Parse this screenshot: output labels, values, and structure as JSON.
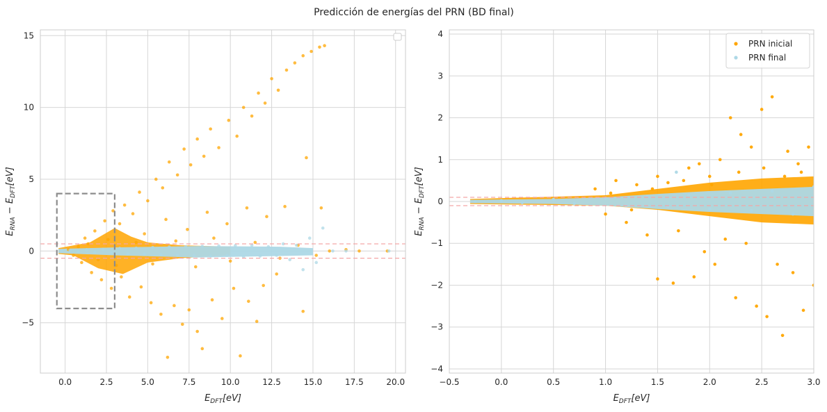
{
  "figure_title": "Predicción de energías del PRN (BD final)",
  "colors": {
    "inicial": "#FFA500",
    "final": "#ADD8E6",
    "band": "#F4A6A6",
    "box": "#8C8C8C",
    "grid": "#D6D6D6"
  },
  "chart_data": [
    {
      "type": "scatter",
      "title": "",
      "xlabel": "E_DFT[eV]",
      "ylabel": "E_RNA − E_DFT[eV]",
      "xlim": [
        -1.5,
        20.6
      ],
      "ylim": [
        -8.5,
        15.4
      ],
      "xticks": [
        0,
        2.5,
        5,
        7.5,
        10,
        12.5,
        15,
        17.5,
        20
      ],
      "xtick_labels": [
        "0.0",
        "2.5",
        "5.0",
        "7.5",
        "10.0",
        "12.5",
        "15.0",
        "17.5",
        "20.0"
      ],
      "yticks": [
        -5,
        0,
        5,
        10,
        15
      ],
      "ytick_labels": [
        "−5",
        "0",
        "5",
        "10",
        "15"
      ],
      "grid": true,
      "legend": "top-right (empty)",
      "hlines": [
        0.5,
        -0.5
      ],
      "zoom_box": {
        "x": [
          -0.5,
          3.0
        ],
        "y": [
          -4.0,
          4.0
        ]
      },
      "series": [
        {
          "key": "inicial",
          "points": [
            [
              0.2,
              0.1
            ],
            [
              0.8,
              0.3
            ],
            [
              1.2,
              0.9
            ],
            [
              1.8,
              1.4
            ],
            [
              2.4,
              2.1
            ],
            [
              2.9,
              2.8
            ],
            [
              3.3,
              1.9
            ],
            [
              3.6,
              3.2
            ],
            [
              4.1,
              2.6
            ],
            [
              4.5,
              4.1
            ],
            [
              5.0,
              3.5
            ],
            [
              5.5,
              5.0
            ],
            [
              5.9,
              4.4
            ],
            [
              6.3,
              6.2
            ],
            [
              6.8,
              5.3
            ],
            [
              7.2,
              7.1
            ],
            [
              7.6,
              6.0
            ],
            [
              8.0,
              7.8
            ],
            [
              8.4,
              6.6
            ],
            [
              8.8,
              8.5
            ],
            [
              9.3,
              7.2
            ],
            [
              9.9,
              9.1
            ],
            [
              10.4,
              8.0
            ],
            [
              10.8,
              10.0
            ],
            [
              11.3,
              9.4
            ],
            [
              11.7,
              11.0
            ],
            [
              12.1,
              10.3
            ],
            [
              12.5,
              12.0
            ],
            [
              12.9,
              11.2
            ],
            [
              13.4,
              12.6
            ],
            [
              13.9,
              13.1
            ],
            [
              14.4,
              13.6
            ],
            [
              14.9,
              13.9
            ],
            [
              15.4,
              14.2
            ],
            [
              15.7,
              14.3
            ],
            [
              4.8,
              1.2
            ],
            [
              6.1,
              2.2
            ],
            [
              7.4,
              1.5
            ],
            [
              8.6,
              2.7
            ],
            [
              9.8,
              1.9
            ],
            [
              11.0,
              3.0
            ],
            [
              12.2,
              2.4
            ],
            [
              13.3,
              3.1
            ],
            [
              14.6,
              6.5
            ],
            [
              15.5,
              3.0
            ],
            [
              1.0,
              -0.8
            ],
            [
              1.6,
              -1.5
            ],
            [
              2.2,
              -2.0
            ],
            [
              2.8,
              -2.6
            ],
            [
              3.4,
              -1.8
            ],
            [
              3.9,
              -3.2
            ],
            [
              4.6,
              -2.5
            ],
            [
              5.2,
              -3.6
            ],
            [
              5.8,
              -4.4
            ],
            [
              6.2,
              -7.4
            ],
            [
              6.6,
              -3.8
            ],
            [
              7.1,
              -5.1
            ],
            [
              7.5,
              -4.1
            ],
            [
              8.0,
              -5.6
            ],
            [
              8.3,
              -6.8
            ],
            [
              8.9,
              -3.4
            ],
            [
              9.5,
              -4.7
            ],
            [
              10.2,
              -2.6
            ],
            [
              10.6,
              -7.3
            ],
            [
              11.1,
              -3.5
            ],
            [
              11.6,
              -4.9
            ],
            [
              12.0,
              -2.4
            ],
            [
              12.8,
              -1.6
            ],
            [
              14.4,
              -4.2
            ],
            [
              0.5,
              -0.3
            ],
            [
              1.4,
              0.5
            ],
            [
              2.0,
              -0.6
            ],
            [
              2.6,
              0.8
            ],
            [
              3.1,
              -1.0
            ],
            [
              4.3,
              0.6
            ],
            [
              5.3,
              -0.9
            ],
            [
              6.7,
              0.7
            ],
            [
              7.9,
              -1.1
            ],
            [
              9.0,
              0.9
            ],
            [
              10.0,
              -0.7
            ],
            [
              11.5,
              0.6
            ],
            [
              13.0,
              -0.5
            ],
            [
              14.1,
              0.4
            ],
            [
              15.2,
              -0.3
            ],
            [
              16.0,
              0.0
            ],
            [
              17.0,
              0.1
            ],
            [
              17.8,
              0.0
            ],
            [
              19.5,
              0.0
            ]
          ]
        },
        {
          "key": "final",
          "points": [
            [
              -0.2,
              0.0
            ],
            [
              0.3,
              0.05
            ],
            [
              0.8,
              -0.05
            ],
            [
              1.3,
              0.1
            ],
            [
              1.8,
              -0.1
            ],
            [
              2.3,
              0.12
            ],
            [
              2.8,
              -0.15
            ],
            [
              3.3,
              0.18
            ],
            [
              3.8,
              -0.2
            ],
            [
              4.3,
              0.2
            ],
            [
              4.8,
              -0.22
            ],
            [
              5.3,
              0.25
            ],
            [
              5.8,
              -0.25
            ],
            [
              6.3,
              0.28
            ],
            [
              6.8,
              -0.3
            ],
            [
              7.3,
              0.3
            ],
            [
              7.8,
              -0.32
            ],
            [
              8.3,
              0.33
            ],
            [
              8.8,
              -0.35
            ],
            [
              9.3,
              0.35
            ],
            [
              9.8,
              -0.3
            ],
            [
              10.3,
              0.38
            ],
            [
              10.8,
              -0.4
            ],
            [
              11.3,
              0.4
            ],
            [
              11.8,
              -0.35
            ],
            [
              12.3,
              0.3
            ],
            [
              12.8,
              -0.3
            ],
            [
              13.2,
              0.5
            ],
            [
              13.6,
              -0.6
            ],
            [
              14.0,
              0.4
            ],
            [
              14.4,
              -1.3
            ],
            [
              14.8,
              0.9
            ],
            [
              15.2,
              -0.8
            ],
            [
              15.6,
              1.6
            ],
            [
              16.2,
              0.0
            ],
            [
              17.0,
              0.0
            ],
            [
              19.6,
              0.0
            ]
          ]
        }
      ]
    },
    {
      "type": "scatter",
      "title": "",
      "xlabel": "E_DFT[eV]",
      "ylabel": "E_RNA − E_DFT[eV]",
      "xlim": [
        -0.5,
        3.0
      ],
      "ylim": [
        -4.1,
        4.1
      ],
      "xticks": [
        -0.5,
        0.0,
        0.5,
        1.0,
        1.5,
        2.0,
        2.5,
        3.0
      ],
      "xtick_labels": [
        "−0.5",
        "0.0",
        "0.5",
        "1.0",
        "1.5",
        "2.0",
        "2.5",
        "3.0"
      ],
      "yticks": [
        -4,
        -3,
        -2,
        -1,
        0,
        1,
        2,
        3,
        4
      ],
      "ytick_labels": [
        "−4",
        "−3",
        "−2",
        "−1",
        "0",
        "1",
        "2",
        "3",
        "4"
      ],
      "grid": true,
      "legend": "top-right",
      "hlines": [
        0.1,
        -0.1
      ],
      "series": [
        {
          "key": "inicial",
          "name": "PRN inicial",
          "points": [
            [
              0.9,
              0.3
            ],
            [
              1.0,
              -0.3
            ],
            [
              1.1,
              0.5
            ],
            [
              1.2,
              -0.5
            ],
            [
              1.3,
              0.4
            ],
            [
              1.4,
              -0.8
            ],
            [
              1.5,
              0.6
            ],
            [
              1.5,
              -1.85
            ],
            [
              1.6,
              0.45
            ],
            [
              1.65,
              -1.95
            ],
            [
              1.7,
              -0.7
            ],
            [
              1.8,
              0.8
            ],
            [
              1.85,
              -1.8
            ],
            [
              1.9,
              0.9
            ],
            [
              1.95,
              -1.2
            ],
            [
              2.0,
              0.6
            ],
            [
              2.05,
              -1.5
            ],
            [
              2.1,
              1.0
            ],
            [
              2.15,
              -0.9
            ],
            [
              2.2,
              2.0
            ],
            [
              2.25,
              -2.3
            ],
            [
              2.3,
              1.6
            ],
            [
              2.35,
              -1.0
            ],
            [
              2.4,
              1.3
            ],
            [
              2.45,
              -2.5
            ],
            [
              2.5,
              2.2
            ],
            [
              2.55,
              -2.75
            ],
            [
              2.6,
              2.5
            ],
            [
              2.65,
              -1.5
            ],
            [
              2.7,
              -3.2
            ],
            [
              2.75,
              1.2
            ],
            [
              2.8,
              -1.7
            ],
            [
              2.85,
              0.9
            ],
            [
              2.9,
              -2.6
            ],
            [
              2.95,
              1.3
            ],
            [
              3.0,
              -2.0
            ],
            [
              1.05,
              0.2
            ],
            [
              1.25,
              -0.2
            ],
            [
              1.45,
              0.3
            ],
            [
              1.75,
              0.5
            ],
            [
              2.02,
              0.4
            ],
            [
              2.28,
              0.7
            ],
            [
              2.52,
              0.8
            ],
            [
              2.72,
              0.6
            ],
            [
              2.88,
              0.7
            ]
          ]
        },
        {
          "key": "final",
          "name": "PRN final",
          "points": [
            [
              -0.25,
              0.0
            ],
            [
              0.0,
              0.02
            ],
            [
              0.2,
              -0.03
            ],
            [
              0.5,
              0.05
            ],
            [
              0.7,
              -0.05
            ],
            [
              1.0,
              0.08
            ],
            [
              1.2,
              -0.1
            ],
            [
              1.4,
              0.12
            ],
            [
              1.6,
              -0.12
            ],
            [
              1.68,
              0.7
            ],
            [
              1.8,
              0.15
            ],
            [
              2.0,
              -0.18
            ],
            [
              2.2,
              0.2
            ],
            [
              2.4,
              -0.22
            ],
            [
              2.6,
              0.25
            ],
            [
              2.8,
              -0.3
            ],
            [
              3.0,
              0.35
            ]
          ]
        }
      ]
    }
  ]
}
